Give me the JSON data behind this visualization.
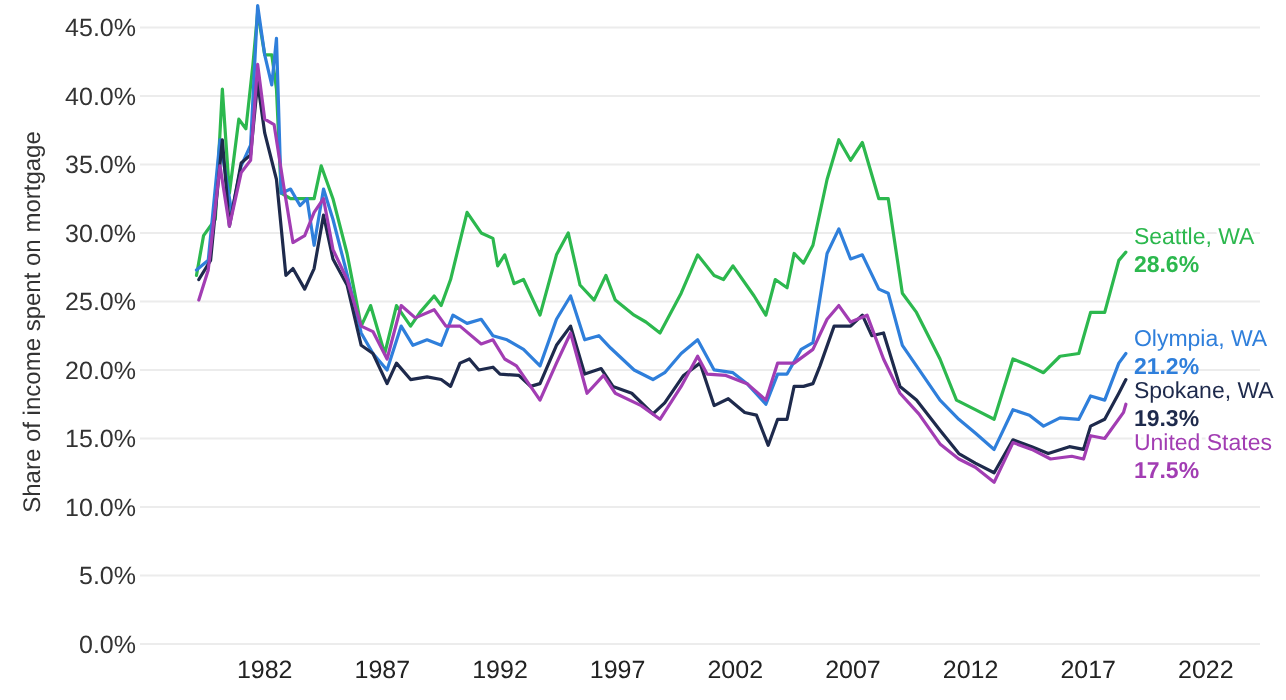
{
  "chart_data": {
    "type": "line",
    "ylabel": "Share of income spent on mortgage",
    "xlim": [
      1976.7,
      2024.3
    ],
    "xticks": [
      1982,
      1987,
      1992,
      1997,
      2002,
      2007,
      2012,
      2017,
      2022
    ],
    "ylim": [
      0,
      47
    ],
    "yticks": [
      {
        "value": 0,
        "label": "0.0%"
      },
      {
        "value": 5,
        "label": "5.0%"
      },
      {
        "value": 10,
        "label": "10.0%"
      },
      {
        "value": 15,
        "label": "15.0%"
      },
      {
        "value": 20,
        "label": "20.0%"
      },
      {
        "value": 25,
        "label": "25.0%"
      },
      {
        "value": 30,
        "label": "30.0%"
      },
      {
        "value": 35,
        "label": "35.0%"
      },
      {
        "value": 40,
        "label": "40.0%"
      },
      {
        "value": 45,
        "label": "45.0%"
      }
    ],
    "grid": "y",
    "legend": false,
    "marker": "none",
    "line_style": "solid",
    "series": [
      {
        "name": "Seattle, WA",
        "color": "#2cb84e",
        "x": [
          1979.1,
          1979.4,
          1979.9,
          1980.2,
          1980.5,
          1980.9,
          1981.2,
          1981.5,
          1981.7,
          1982.0,
          1982.3,
          1982.5,
          1982.7,
          1983.1,
          1983.5,
          1984.1,
          1984.4,
          1984.9,
          1985.5,
          1986.1,
          1986.5,
          1987.1,
          1987.6,
          1988.2,
          1988.6,
          1989.2,
          1989.5,
          1989.9,
          1990.6,
          1991.2,
          1991.7,
          1991.9,
          1992.2,
          1992.6,
          1993.0,
          1993.7,
          1994.4,
          1994.9,
          1995.4,
          1996.0,
          1996.5,
          1996.9,
          1997.7,
          1998.2,
          1998.8,
          1999.7,
          2000.4,
          2001.1,
          2001.5,
          2001.9,
          2002.8,
          2003.3,
          2003.7,
          2004.2,
          2004.5,
          2004.9,
          2005.3,
          2005.9,
          2006.4,
          2006.9,
          2007.4,
          2008.1,
          2008.5,
          2009.1,
          2009.7,
          2010.7,
          2011.4,
          2012.2,
          2013.0,
          2013.8,
          2014.5,
          2015.1,
          2015.8,
          2016.6,
          2017.1,
          2017.7,
          2018.3,
          2018.6
        ],
        "values": [
          26.9,
          29.8,
          31.0,
          40.5,
          32.9,
          38.3,
          37.6,
          42.3,
          46.1,
          43.0,
          43.0,
          40.5,
          32.9,
          32.5,
          32.5,
          32.5,
          34.9,
          32.5,
          28.5,
          23.2,
          24.7,
          21.2,
          24.7,
          23.2,
          24.2,
          25.4,
          24.7,
          26.6,
          31.5,
          30.0,
          29.6,
          27.6,
          28.4,
          26.3,
          26.6,
          24.0,
          28.4,
          30.0,
          26.2,
          25.1,
          26.9,
          25.1,
          24.0,
          23.5,
          22.7,
          25.6,
          28.4,
          26.9,
          26.6,
          27.6,
          25.4,
          24.0,
          26.6,
          26.0,
          28.5,
          27.8,
          29.1,
          33.9,
          36.8,
          35.3,
          36.6,
          32.5,
          32.5,
          25.6,
          24.2,
          20.8,
          17.8,
          17.1,
          16.4,
          20.8,
          20.3,
          19.8,
          21.0,
          21.2,
          24.2,
          24.2,
          28.0,
          28.6
        ],
        "value_labels": [
          null,
          null,
          null,
          null,
          null,
          null,
          null,
          null,
          null,
          null,
          null,
          null,
          null,
          null,
          null,
          null,
          null,
          null,
          null,
          null,
          null,
          null,
          null,
          null,
          null,
          null,
          null,
          null,
          null,
          null,
          null,
          null,
          null,
          null,
          null,
          null,
          null,
          null,
          null,
          null,
          null,
          null,
          null,
          null,
          null,
          null,
          null,
          null,
          null,
          null,
          null,
          null,
          null,
          null,
          null,
          null,
          null,
          null,
          null,
          null,
          null,
          null,
          null,
          null,
          null,
          null,
          null,
          null,
          null,
          null,
          null,
          null,
          null,
          null,
          null,
          null,
          null,
          "28.6%"
        ]
      },
      {
        "name": "Olympia, WA",
        "color": "#2f7fdb",
        "x": [
          1979.1,
          1979.6,
          1980.1,
          1980.6,
          1981.0,
          1981.4,
          1981.7,
          1982.0,
          1982.3,
          1982.5,
          1982.7,
          1983.1,
          1983.5,
          1983.8,
          1984.1,
          1984.5,
          1984.9,
          1985.5,
          1986.1,
          1986.6,
          1987.2,
          1987.8,
          1988.3,
          1988.9,
          1989.5,
          1990.0,
          1990.6,
          1991.2,
          1991.7,
          1992.3,
          1993.0,
          1993.7,
          1994.4,
          1995.0,
          1995.6,
          1996.2,
          1996.7,
          1997.7,
          1998.5,
          1999.0,
          1999.7,
          2000.4,
          2001.1,
          2001.9,
          2002.5,
          2003.3,
          2003.8,
          2004.2,
          2004.8,
          2005.3,
          2005.9,
          2006.4,
          2006.9,
          2007.4,
          2008.1,
          2008.5,
          2009.1,
          2009.7,
          2010.7,
          2011.5,
          2012.2,
          2013.0,
          2013.8,
          2014.5,
          2015.1,
          2015.8,
          2016.6,
          2017.1,
          2017.7,
          2018.3,
          2018.6
        ],
        "values": [
          27.3,
          28.0,
          36.8,
          31.5,
          34.9,
          36.4,
          46.6,
          43.0,
          40.8,
          44.2,
          32.9,
          33.2,
          32.0,
          32.5,
          29.1,
          33.2,
          31.0,
          27.0,
          22.7,
          21.2,
          20.0,
          23.2,
          21.8,
          22.2,
          21.8,
          24.0,
          23.4,
          23.7,
          22.5,
          22.2,
          21.5,
          20.3,
          23.7,
          25.4,
          22.2,
          22.5,
          21.6,
          20.0,
          19.3,
          19.8,
          21.2,
          22.2,
          20.0,
          19.8,
          19.0,
          17.5,
          19.7,
          19.7,
          21.5,
          22.0,
          28.5,
          30.3,
          28.1,
          28.4,
          25.9,
          25.6,
          21.8,
          20.3,
          17.8,
          16.4,
          15.4,
          14.2,
          17.1,
          16.7,
          15.9,
          16.5,
          16.4,
          18.1,
          17.8,
          20.5,
          21.2
        ],
        "value_labels": [
          null,
          null,
          null,
          null,
          null,
          null,
          null,
          null,
          null,
          null,
          null,
          null,
          null,
          null,
          null,
          null,
          null,
          null,
          null,
          null,
          null,
          null,
          null,
          null,
          null,
          null,
          null,
          null,
          null,
          null,
          null,
          null,
          null,
          null,
          null,
          null,
          null,
          null,
          null,
          null,
          null,
          null,
          null,
          null,
          null,
          null,
          null,
          null,
          null,
          null,
          null,
          null,
          null,
          null,
          null,
          null,
          null,
          null,
          null,
          null,
          null,
          null,
          null,
          null,
          null,
          null,
          null,
          null,
          null,
          null,
          "21.2%"
        ]
      },
      {
        "name": "Spokane, WA",
        "color": "#1e2a4c",
        "x": [
          1979.2,
          1979.7,
          1980.2,
          1980.5,
          1981.0,
          1981.4,
          1981.7,
          1982.0,
          1982.5,
          1982.9,
          1983.2,
          1983.7,
          1984.1,
          1984.5,
          1984.9,
          1985.5,
          1986.1,
          1986.6,
          1987.2,
          1987.6,
          1988.2,
          1988.9,
          1989.5,
          1989.9,
          1990.3,
          1990.7,
          1991.1,
          1991.7,
          1992.0,
          1992.8,
          1993.3,
          1993.7,
          1994.4,
          1995.0,
          1995.6,
          1996.3,
          1996.8,
          1997.6,
          1998.5,
          1999.0,
          1999.8,
          2000.5,
          2001.1,
          2001.7,
          2002.4,
          2002.9,
          2003.4,
          2003.8,
          2004.2,
          2004.5,
          2004.9,
          2005.3,
          2005.6,
          2006.2,
          2006.9,
          2007.4,
          2007.8,
          2008.3,
          2009.0,
          2009.7,
          2010.7,
          2011.5,
          2012.2,
          2013.0,
          2013.8,
          2014.6,
          2015.3,
          2016.2,
          2016.8,
          2017.1,
          2017.7,
          2018.3,
          2018.6
        ],
        "values": [
          26.6,
          28.0,
          36.8,
          30.5,
          35.1,
          35.7,
          41.0,
          37.3,
          33.9,
          26.9,
          27.4,
          25.9,
          27.4,
          31.3,
          28.1,
          26.2,
          21.8,
          21.2,
          19.0,
          20.5,
          19.3,
          19.5,
          19.3,
          18.8,
          20.5,
          20.8,
          20.0,
          20.2,
          19.7,
          19.6,
          18.8,
          19.0,
          21.8,
          23.2,
          19.7,
          20.1,
          18.8,
          18.3,
          16.8,
          17.6,
          19.6,
          20.5,
          17.4,
          17.9,
          16.9,
          16.7,
          14.5,
          16.4,
          16.4,
          18.8,
          18.8,
          19.0,
          20.3,
          23.2,
          23.2,
          24.0,
          22.5,
          22.7,
          18.8,
          17.8,
          15.6,
          13.9,
          13.2,
          12.5,
          14.9,
          14.4,
          13.9,
          14.4,
          14.2,
          15.9,
          16.4,
          18.3,
          19.3
        ],
        "value_labels": [
          null,
          null,
          null,
          null,
          null,
          null,
          null,
          null,
          null,
          null,
          null,
          null,
          null,
          null,
          null,
          null,
          null,
          null,
          null,
          null,
          null,
          null,
          null,
          null,
          null,
          null,
          null,
          null,
          null,
          null,
          null,
          null,
          null,
          null,
          null,
          null,
          null,
          null,
          null,
          null,
          null,
          null,
          null,
          null,
          null,
          null,
          null,
          null,
          null,
          null,
          null,
          null,
          null,
          null,
          null,
          null,
          null,
          null,
          null,
          null,
          null,
          null,
          null,
          null,
          null,
          null,
          null,
          null,
          null,
          null,
          null,
          null,
          "19.3%"
        ]
      },
      {
        "name": "United States",
        "color": "#a23db3",
        "x": [
          1979.2,
          1979.6,
          1980.1,
          1980.5,
          1981.0,
          1981.4,
          1981.7,
          1982.0,
          1982.4,
          1982.8,
          1983.2,
          1983.7,
          1984.1,
          1984.5,
          1984.9,
          1985.5,
          1986.1,
          1986.6,
          1987.2,
          1987.8,
          1988.4,
          1989.2,
          1989.7,
          1990.3,
          1991.2,
          1991.7,
          1992.2,
          1992.7,
          1993.7,
          1994.4,
          1995.0,
          1995.7,
          1996.4,
          1996.9,
          1998.0,
          1998.8,
          1999.7,
          2000.4,
          2000.8,
          2001.6,
          2002.5,
          2003.3,
          2003.8,
          2004.5,
          2005.3,
          2005.9,
          2006.4,
          2006.9,
          2007.6,
          2008.3,
          2009.0,
          2009.8,
          2010.7,
          2011.5,
          2012.2,
          2013.0,
          2013.8,
          2014.6,
          2015.4,
          2016.3,
          2016.8,
          2017.1,
          2017.7,
          2018.5,
          2018.6
        ],
        "values": [
          25.1,
          27.3,
          34.9,
          30.5,
          34.4,
          35.3,
          42.3,
          38.3,
          37.9,
          33.5,
          29.3,
          29.8,
          31.5,
          32.5,
          28.8,
          26.6,
          23.2,
          22.8,
          20.8,
          24.7,
          23.8,
          24.4,
          23.2,
          23.2,
          21.9,
          22.2,
          20.8,
          20.3,
          17.8,
          20.5,
          22.7,
          18.3,
          19.6,
          18.3,
          17.4,
          16.4,
          18.8,
          21.0,
          19.7,
          19.6,
          19.0,
          17.8,
          20.5,
          20.5,
          21.5,
          23.7,
          24.7,
          23.5,
          24.0,
          20.8,
          18.3,
          16.8,
          14.6,
          13.5,
          12.9,
          11.8,
          14.7,
          14.2,
          13.5,
          13.7,
          13.5,
          15.2,
          15.0,
          16.9,
          17.5
        ],
        "value_labels": [
          null,
          null,
          null,
          null,
          null,
          null,
          null,
          null,
          null,
          null,
          null,
          null,
          null,
          null,
          null,
          null,
          null,
          null,
          null,
          null,
          null,
          null,
          null,
          null,
          null,
          null,
          null,
          null,
          null,
          null,
          null,
          null,
          null,
          null,
          null,
          null,
          null,
          null,
          null,
          null,
          null,
          null,
          null,
          null,
          null,
          null,
          null,
          null,
          null,
          null,
          null,
          null,
          null,
          null,
          null,
          null,
          null,
          null,
          null,
          null,
          null,
          null,
          null,
          null,
          "17.5%"
        ]
      }
    ]
  }
}
